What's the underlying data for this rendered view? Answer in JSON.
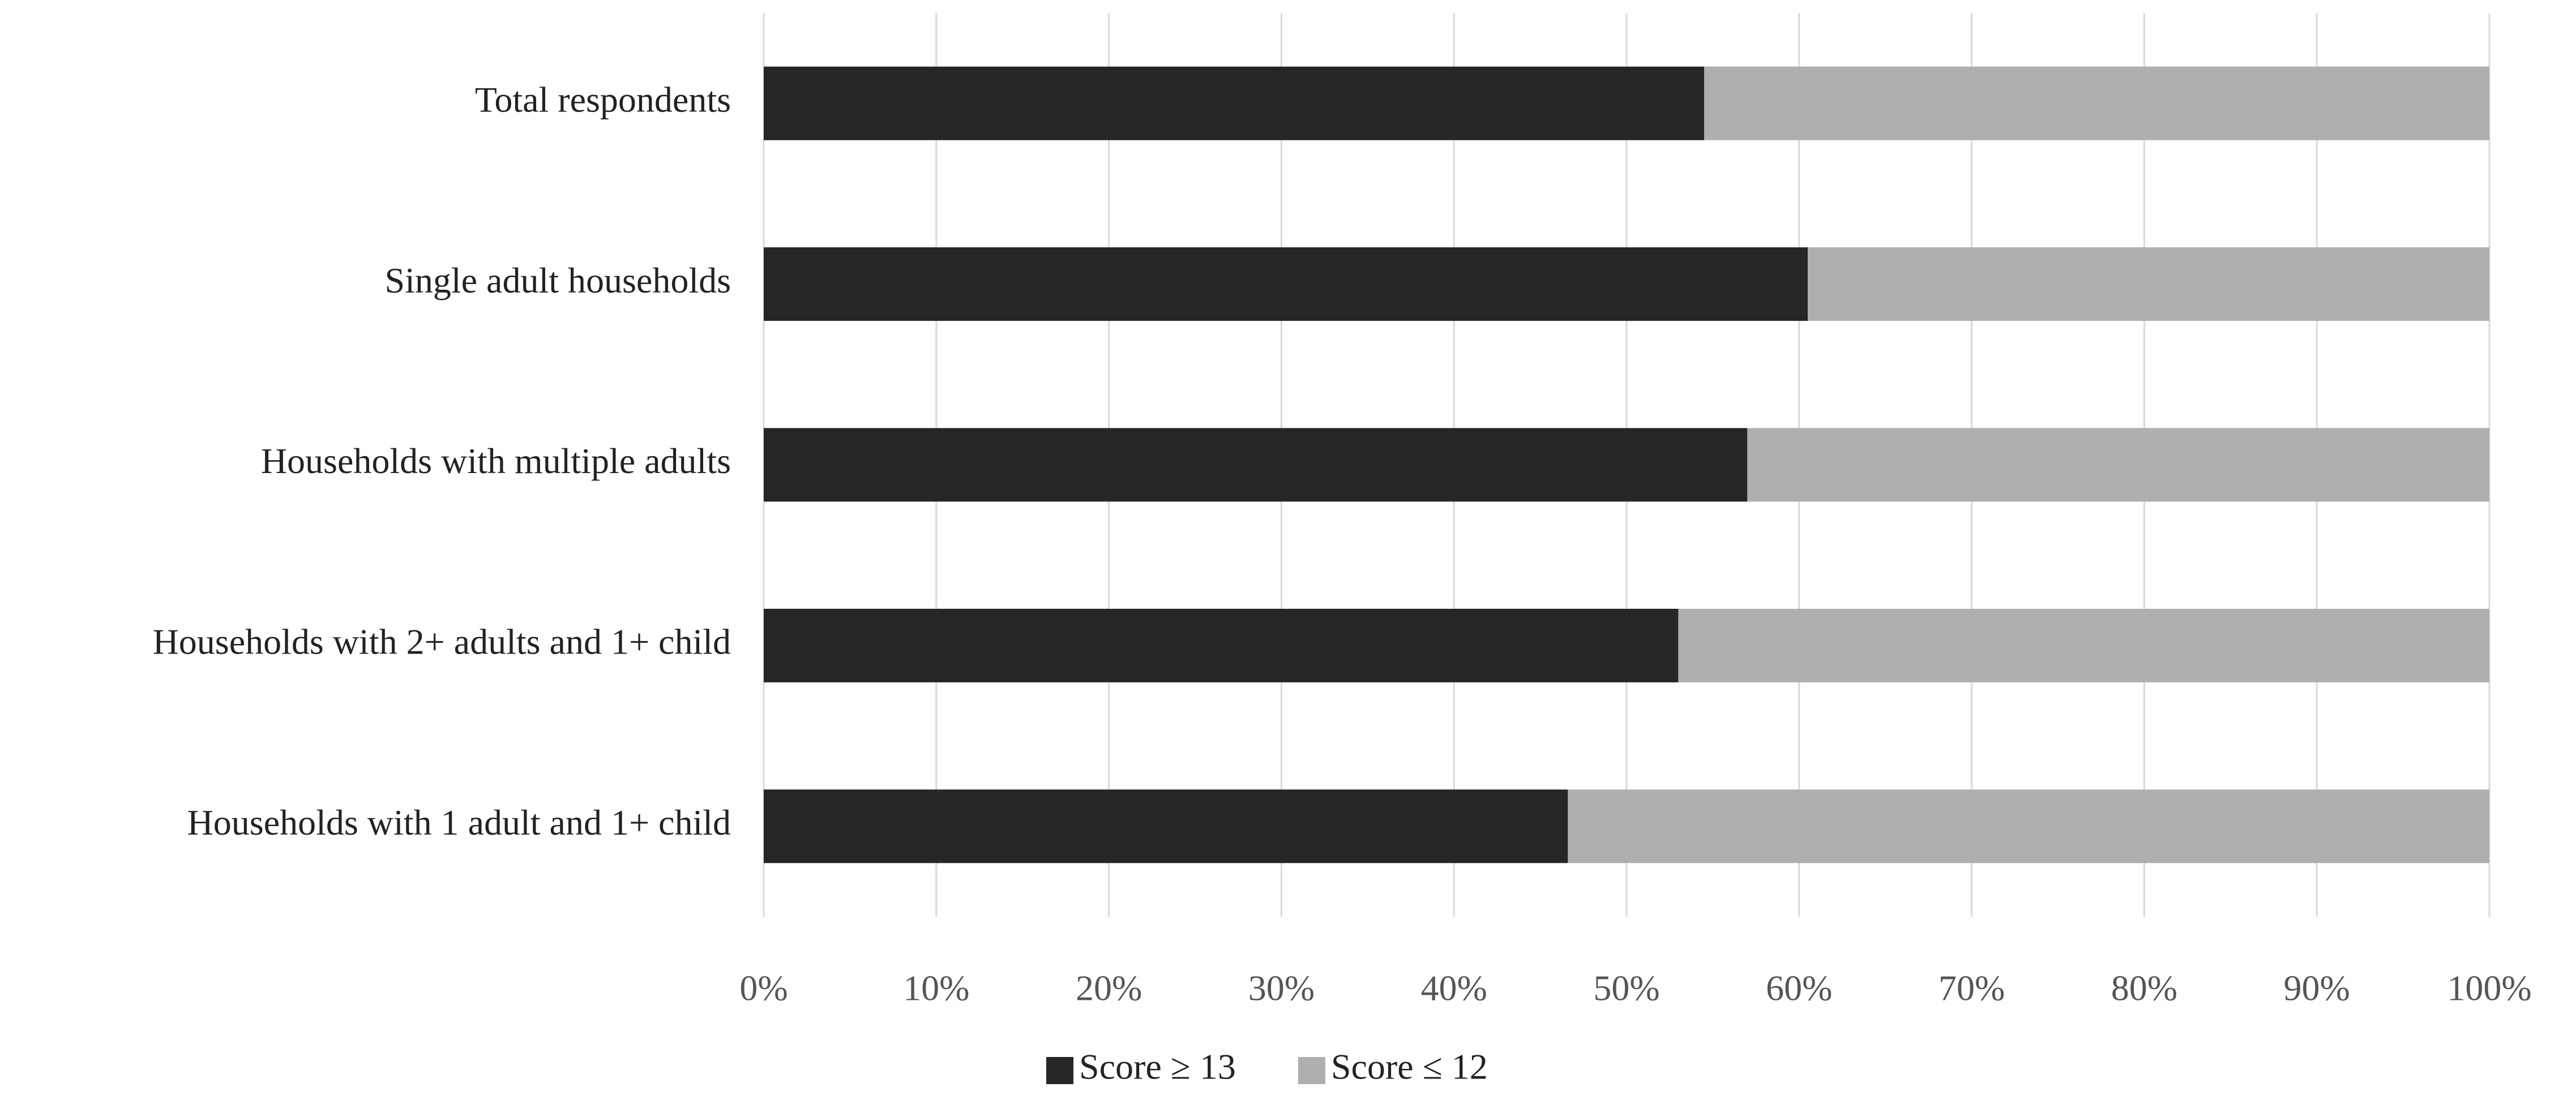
{
  "chart_data": {
    "type": "stacked_bar_horizontal",
    "categories": [
      "Total respondents",
      "Single adult households",
      "Households with multiple adults",
      "Households with 2+ adults and 1+ child",
      "Households with 1 adult and 1+ child"
    ],
    "series": [
      {
        "name": "Score ≥ 13",
        "color": "#262626",
        "values": [
          54.5,
          60.5,
          57,
          53,
          46.6
        ]
      },
      {
        "name": "Score ≤ 12",
        "color": "#afafaf",
        "values": [
          45.5,
          39.5,
          43,
          47,
          53.4
        ]
      }
    ],
    "xlim": [
      0,
      100
    ],
    "xticks": [
      {
        "value": 0,
        "label": "0%"
      },
      {
        "value": 10,
        "label": "10%"
      },
      {
        "value": 20,
        "label": "20%"
      },
      {
        "value": 30,
        "label": "30%"
      },
      {
        "value": 40,
        "label": "40%"
      },
      {
        "value": 50,
        "label": "50%"
      },
      {
        "value": 60,
        "label": "60%"
      },
      {
        "value": 70,
        "label": "70%"
      },
      {
        "value": 80,
        "label": "80%"
      },
      {
        "value": 90,
        "label": "90%"
      },
      {
        "value": 100,
        "label": "100%"
      }
    ],
    "grid": true,
    "legend": "bottom"
  }
}
